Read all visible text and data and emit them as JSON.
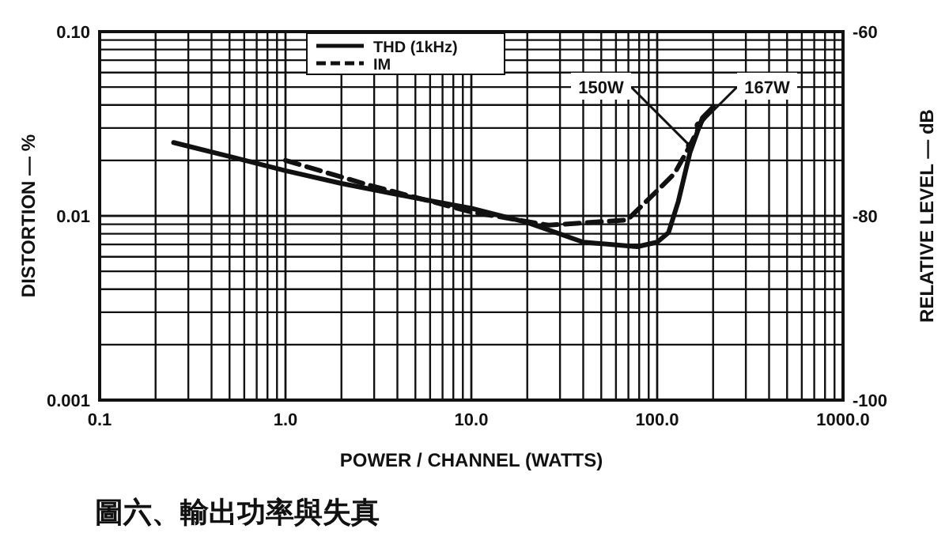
{
  "chart_data": {
    "type": "line",
    "title": "圖六、輸出功率與失真",
    "xlabel": "POWER / CHANNEL (WATTS)",
    "ylabel": "DISTORTION — %",
    "y2label": "RELATIVE LEVEL — dB",
    "log": "xy",
    "grid": true,
    "legend": "top",
    "marker": "none",
    "xlim": [
      0.1,
      1000
    ],
    "xticks": [
      {
        "value": 0.1,
        "label": "0.1"
      },
      {
        "value": 1,
        "label": "1.0"
      },
      {
        "value": 10,
        "label": "10.0"
      },
      {
        "value": 100,
        "label": "100.0"
      },
      {
        "value": 1000,
        "label": "1000.0"
      }
    ],
    "ylim": [
      0.001,
      0.1
    ],
    "yticks": [
      {
        "value": 0.001,
        "label": "0.001"
      },
      {
        "value": 0.01,
        "label": "0.01"
      },
      {
        "value": 0.1,
        "label": "0.10"
      }
    ],
    "y2lim": [
      -100,
      -60
    ],
    "y2ticks": [
      -100,
      -80,
      -60
    ],
    "series": [
      {
        "name": "THD (1kHz)",
        "color": "#111111",
        "line_style": "solid",
        "x": [
          0.25,
          0.5,
          1,
          2,
          5,
          10,
          20,
          40,
          78,
          100,
          115,
          130,
          150,
          175,
          200
        ],
        "values": [
          0.025,
          0.021,
          0.0176,
          0.015,
          0.0125,
          0.011,
          0.0092,
          0.0072,
          0.0068,
          0.0072,
          0.0081,
          0.012,
          0.022,
          0.034,
          0.039
        ]
      },
      {
        "name": "IM",
        "color": "#111111",
        "line_style": "dashed",
        "x": [
          1,
          2.8,
          10,
          26,
          69,
          95,
          124,
          150,
          175,
          200
        ],
        "values": [
          0.02,
          0.0147,
          0.0105,
          0.0089,
          0.0095,
          0.013,
          0.017,
          0.024,
          0.033,
          0.039
        ]
      }
    ],
    "annotations": [
      {
        "text": "150W",
        "x": 150,
        "y": 0.024
      },
      {
        "text": "167W",
        "x": 167,
        "y": 0.031
      }
    ]
  }
}
